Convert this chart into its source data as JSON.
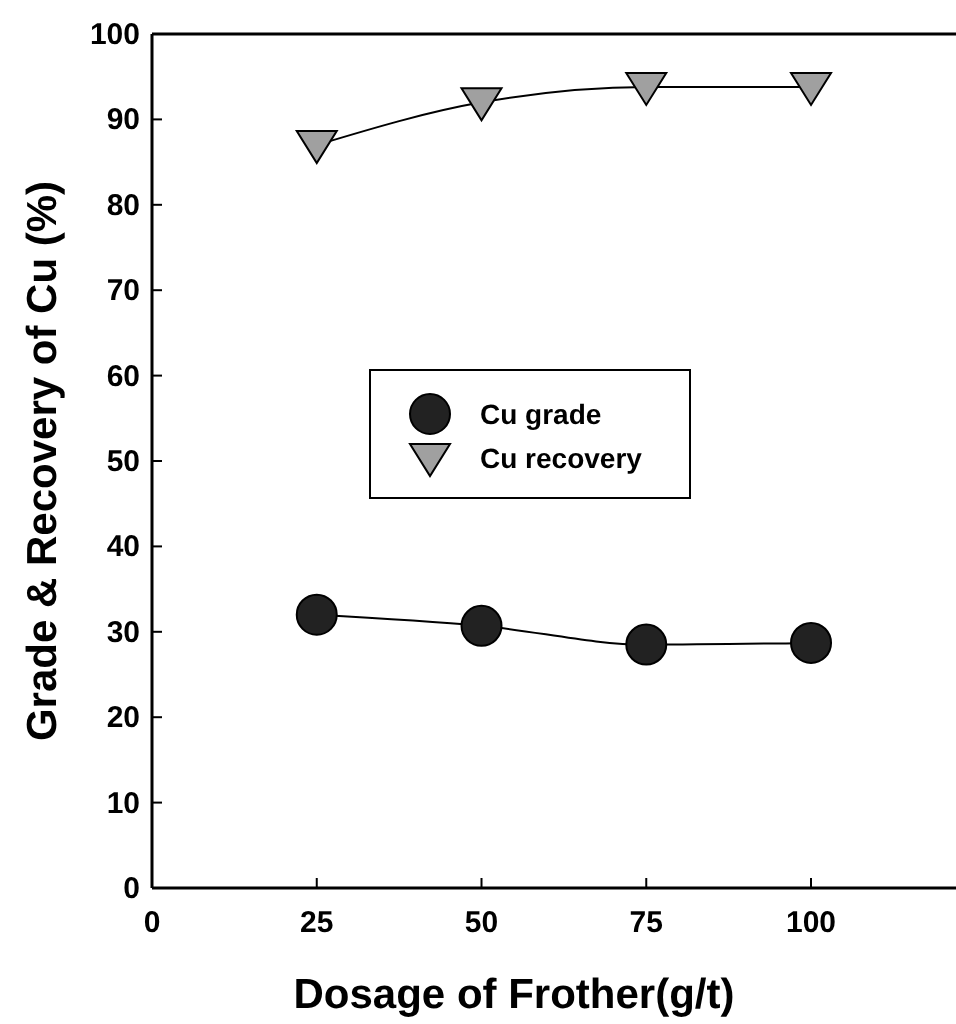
{
  "chart_data": {
    "type": "line",
    "xlabel": "Dosage of Frother(g/t)",
    "ylabel": "Grade & Recovery of Cu (%)",
    "x": [
      25,
      50,
      75,
      100
    ],
    "series": [
      {
        "name": "Cu grade",
        "color": "#222222",
        "marker": "circle",
        "values": [
          32,
          30.7,
          28.5,
          28.7
        ]
      },
      {
        "name": "Cu recovery",
        "color": "#a0a0a0",
        "marker": "triangle",
        "values": [
          87,
          92,
          93.8,
          93.8
        ]
      }
    ],
    "xlim": [
      0,
      122
    ],
    "xticks": [
      0,
      25,
      50,
      75,
      100
    ],
    "ylim": [
      0,
      100
    ],
    "yticks": [
      0,
      10,
      20,
      30,
      40,
      50,
      60,
      70,
      80,
      90,
      100
    ],
    "grid": false,
    "legend": "center"
  }
}
